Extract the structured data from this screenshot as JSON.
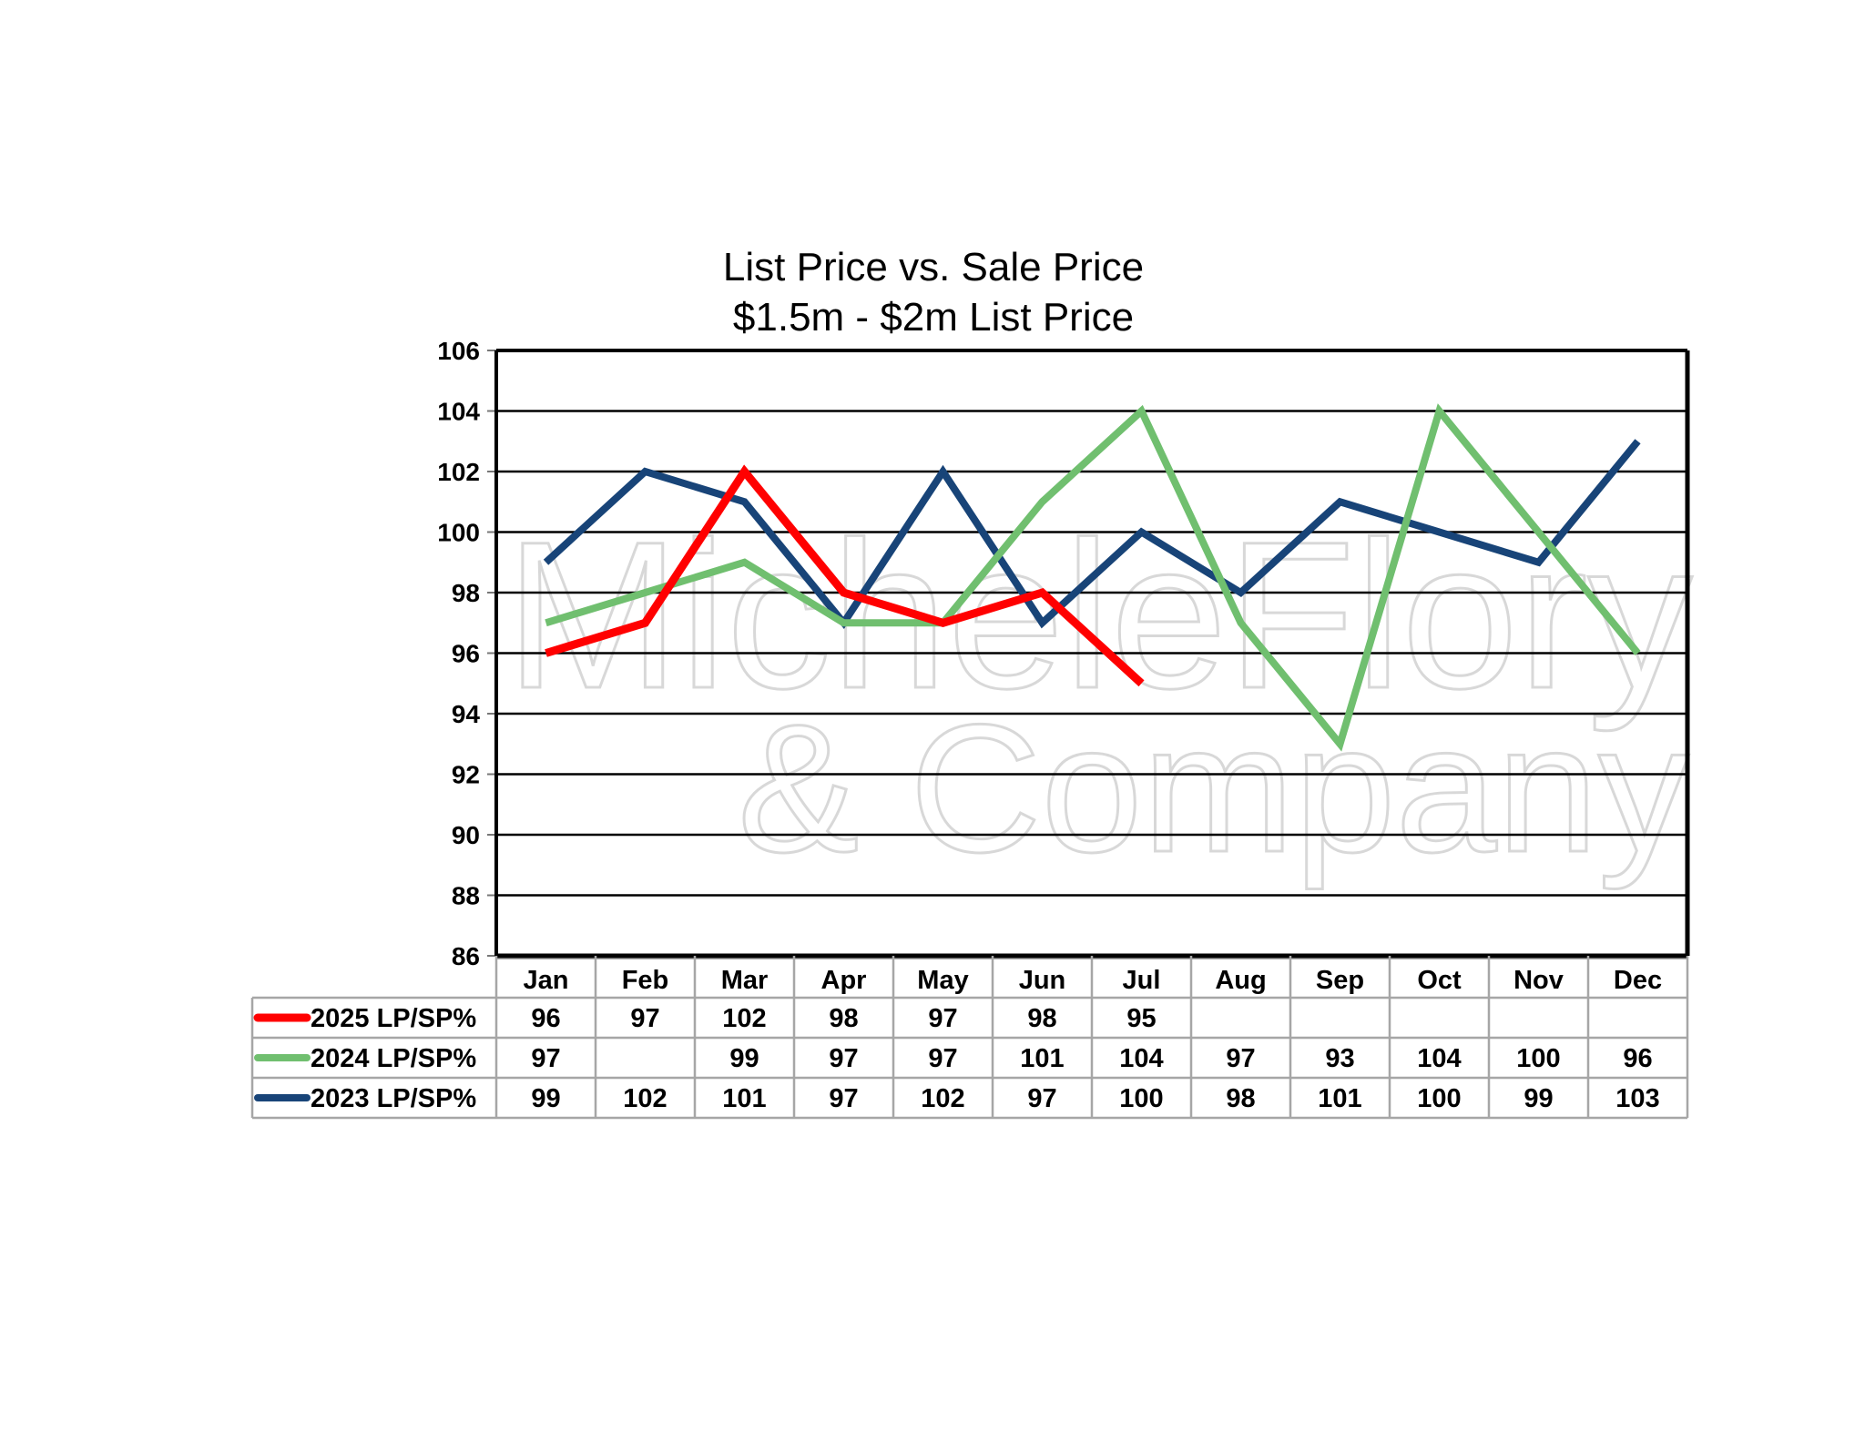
{
  "chart_data": {
    "type": "line",
    "title": "List Price vs. Sale Price",
    "subtitle": "$1.5m - $2m List Price",
    "categories": [
      "Jan",
      "Feb",
      "Mar",
      "Apr",
      "May",
      "Jun",
      "Jul",
      "Aug",
      "Sep",
      "Oct",
      "Nov",
      "Dec"
    ],
    "ylim": [
      86,
      106
    ],
    "yticks": [
      86,
      88,
      90,
      92,
      94,
      96,
      98,
      100,
      102,
      104,
      106
    ],
    "grid": true,
    "legend": "data-table-below",
    "series": [
      {
        "name": "2025 LP/SP%",
        "color": "#ff0000",
        "values": [
          96,
          97,
          102,
          98,
          97,
          98,
          95,
          null,
          null,
          null,
          null,
          null
        ]
      },
      {
        "name": "2024 LP/SP%",
        "color": "#70bf6f",
        "values": [
          97,
          98,
          99,
          97,
          97,
          101,
          104,
          97,
          93,
          104,
          100,
          96
        ],
        "table_values": [
          97,
          null,
          99,
          97,
          97,
          101,
          104,
          97,
          93,
          104,
          100,
          96
        ]
      },
      {
        "name": "2023 LP/SP%",
        "color": "#184478",
        "values": [
          99,
          102,
          101,
          97,
          102,
          97,
          100,
          98,
          101,
          100,
          99,
          103
        ]
      }
    ]
  },
  "watermark": {
    "logo_text": "MicheleFlory",
    "tagline": "& Company"
  }
}
